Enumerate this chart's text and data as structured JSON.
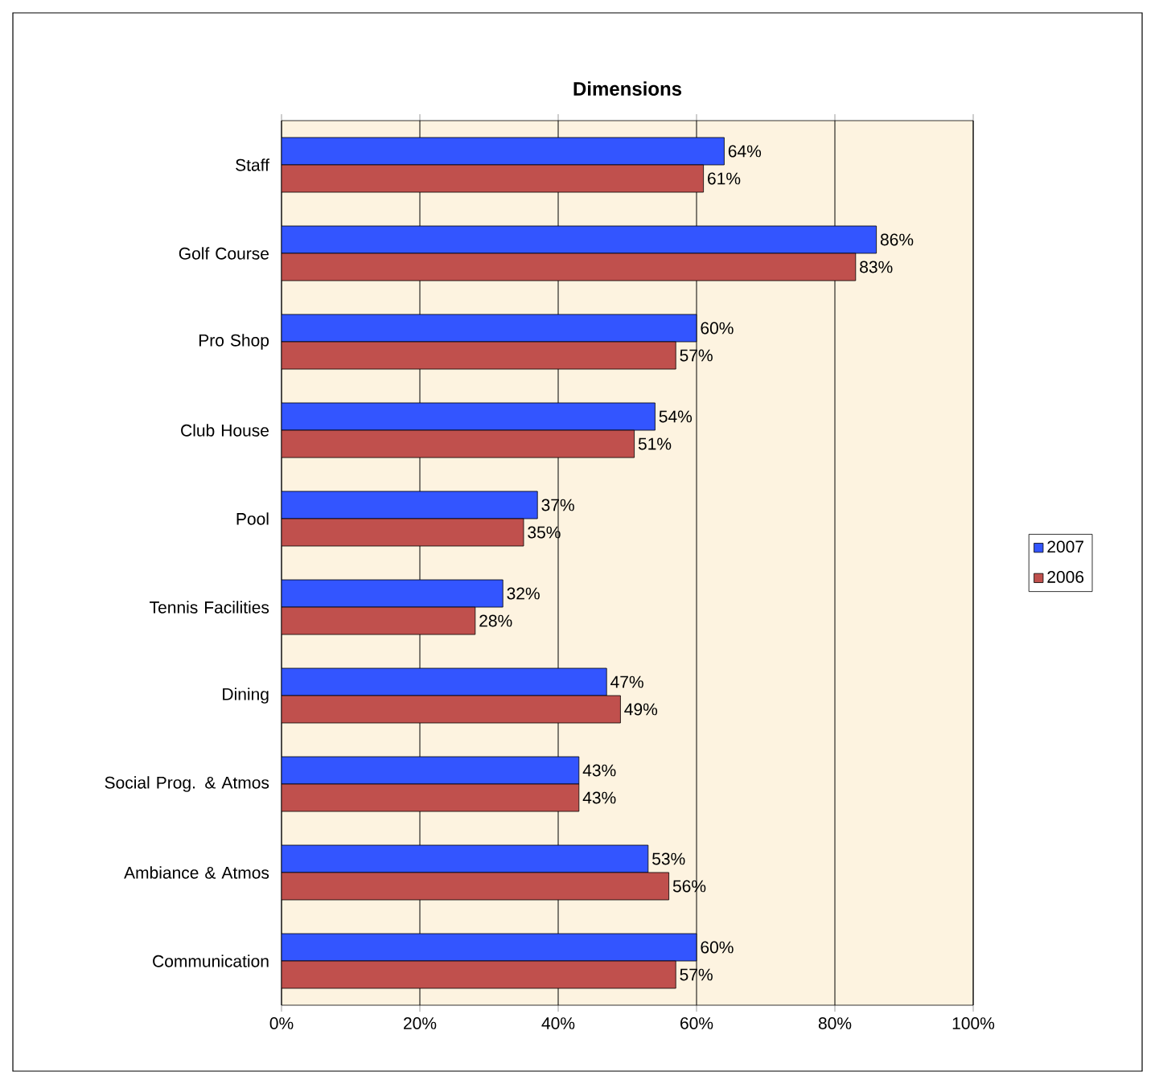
{
  "chart_data": {
    "type": "bar",
    "orientation": "horizontal",
    "title": "Dimensions",
    "categories": [
      "Staff",
      "Golf Course",
      "Pro Shop",
      "Club House",
      "Pool",
      "Tennis Facilities",
      "Dining",
      "Social Prog. & Atmos",
      "Ambiance & Atmos",
      "Communication"
    ],
    "series": [
      {
        "name": "2007",
        "color": "#3355ff",
        "values": [
          64,
          86,
          60,
          54,
          37,
          32,
          47,
          43,
          53,
          60
        ],
        "value_labels": [
          "64%",
          "86%",
          "60%",
          "54%",
          "37%",
          "32%",
          "47%",
          "43%",
          "53%",
          "60%"
        ]
      },
      {
        "name": "2006",
        "color": "#c0504d",
        "values": [
          61,
          83,
          57,
          51,
          35,
          28,
          49,
          43,
          56,
          57
        ],
        "value_labels": [
          "61%",
          "83%",
          "57%",
          "51%",
          "35%",
          "28%",
          "49%",
          "43%",
          "56%",
          "57%"
        ]
      }
    ],
    "xlim": [
      0,
      100
    ],
    "xticks": [
      {
        "value": 0,
        "label": "0%"
      },
      {
        "value": 20,
        "label": "20%"
      },
      {
        "value": 40,
        "label": "40%"
      },
      {
        "value": 60,
        "label": "60%"
      },
      {
        "value": 80,
        "label": "80%"
      },
      {
        "value": 100,
        "label": "100%"
      }
    ],
    "grid": "x",
    "legend": "right"
  }
}
